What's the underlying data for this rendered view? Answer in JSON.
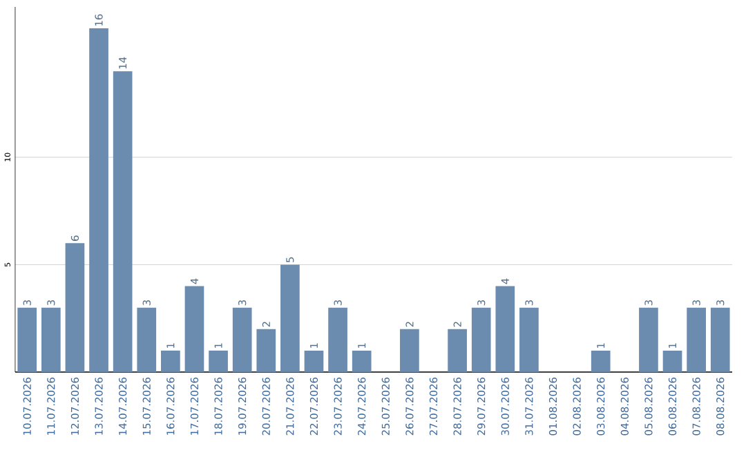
{
  "chart_data": {
    "type": "bar",
    "categories": [
      "10.07.2026",
      "11.07.2026",
      "12.07.2026",
      "13.07.2026",
      "14.07.2026",
      "15.07.2026",
      "16.07.2026",
      "17.07.2026",
      "18.07.2026",
      "19.07.2026",
      "20.07.2026",
      "21.07.2026",
      "22.07.2026",
      "23.07.2026",
      "24.07.2026",
      "25.07.2026",
      "26.07.2026",
      "27.07.2026",
      "28.07.2026",
      "29.07.2026",
      "30.07.2026",
      "31.07.2026",
      "01.08.2026",
      "02.08.2026",
      "03.08.2026",
      "04.08.2026",
      "05.08.2026",
      "06.08.2026",
      "07.08.2026",
      "08.08.2026"
    ],
    "values": [
      3,
      3,
      6,
      16,
      14,
      3,
      1,
      4,
      1,
      3,
      2,
      5,
      1,
      3,
      1,
      0,
      2,
      0,
      2,
      3,
      4,
      3,
      0,
      0,
      1,
      0,
      3,
      1,
      3,
      3
    ],
    "value_labels": [
      "3",
      "3",
      "6",
      "16",
      "14",
      "3",
      "1",
      "4",
      "1",
      "3",
      "2",
      "5",
      "1",
      "3",
      "1",
      null,
      "2",
      null,
      "2",
      "3",
      "4",
      "3",
      null,
      null,
      "1",
      null,
      "3",
      "1",
      "3",
      "3"
    ],
    "color": "#6b8cae",
    "ylim": [
      0,
      17
    ],
    "yticks": [
      5,
      10
    ],
    "grid": "y"
  }
}
